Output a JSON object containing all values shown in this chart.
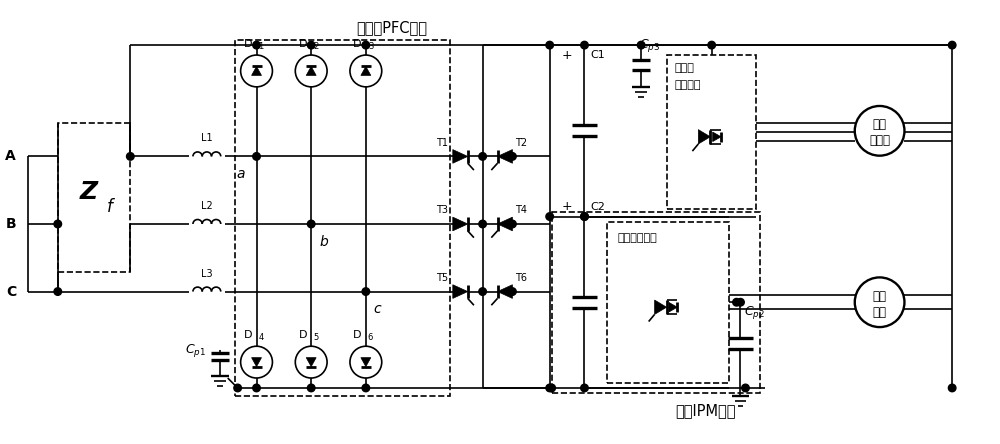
{
  "bg_color": "#ffffff",
  "line_color": "#000000",
  "labels": {
    "vienna_pfc": "维也纳PFC模块",
    "fan_ipm": "风朼IPM模块",
    "A": "A",
    "B": "B",
    "C": "C",
    "L1": "L1",
    "L2": "L2",
    "L3": "L3",
    "a": "a",
    "b": "b",
    "c": "c",
    "compressor_drive_1": "压缩朼",
    "compressor_drive_2": "驱动电路",
    "fan_drive": "风朼驱动电路",
    "variable_freq_1": "变频",
    "variable_freq_2": "压缩朼",
    "dc_fan_1": "直流",
    "dc_fan_2": "风朼",
    "C1": "C1",
    "C2": "C2"
  }
}
